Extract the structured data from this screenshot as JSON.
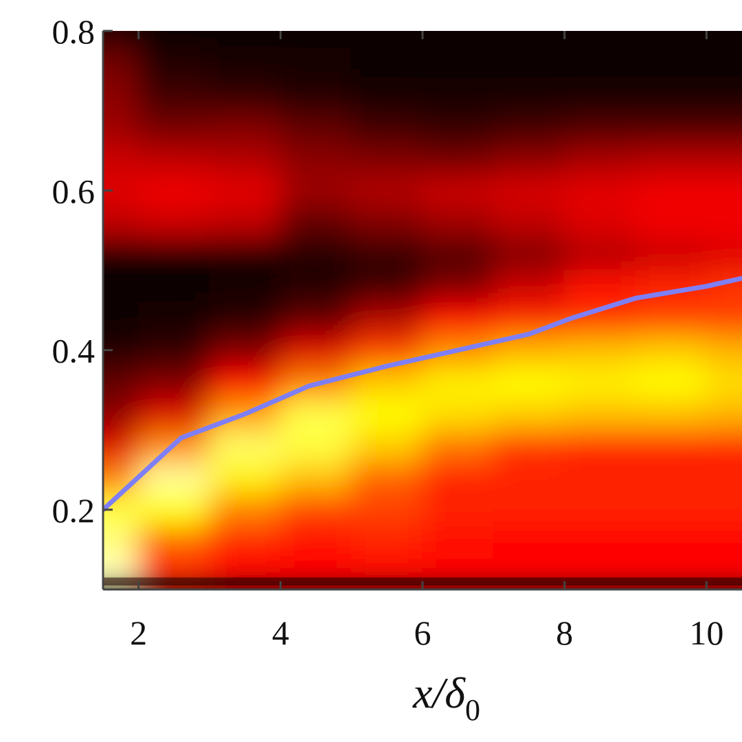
{
  "chart_data": {
    "type": "heatmap",
    "title": "",
    "xlabel": "x/δ0",
    "xlabel_main": "x/δ",
    "xlabel_sub": "0",
    "ylabel": "",
    "xlim": [
      1.5,
      10.5
    ],
    "ylim": [
      0.1,
      0.8
    ],
    "xticks": [
      2,
      4,
      6,
      8,
      10
    ],
    "yticks": [
      0.2,
      0.4,
      0.6,
      0.8
    ],
    "xtick_labels": [
      "2",
      "4",
      "6",
      "8",
      "10"
    ],
    "ytick_labels": [
      "0.2",
      "0.4",
      "0.6",
      "0.8"
    ],
    "colormap": "hot",
    "grid": false,
    "intensity_field": {
      "x": [
        1.5,
        2.5,
        3.5,
        4.5,
        5.5,
        6.5,
        7.5,
        8.5,
        9.5,
        10.5
      ],
      "y": [
        0.12,
        0.16,
        0.2,
        0.24,
        0.28,
        0.32,
        0.36,
        0.4,
        0.44,
        0.48,
        0.52,
        0.56,
        0.6,
        0.64,
        0.68,
        0.72,
        0.76,
        0.8
      ],
      "values": [
        [
          0.95,
          0.45,
          0.4,
          0.4,
          0.4,
          0.4,
          0.4,
          0.4,
          0.4,
          0.4
        ],
        [
          0.9,
          0.55,
          0.45,
          0.42,
          0.45,
          0.42,
          0.4,
          0.4,
          0.4,
          0.4
        ],
        [
          0.85,
          0.8,
          0.6,
          0.5,
          0.5,
          0.45,
          0.45,
          0.45,
          0.45,
          0.45
        ],
        [
          0.6,
          0.92,
          0.78,
          0.7,
          0.55,
          0.45,
          0.45,
          0.45,
          0.45,
          0.45
        ],
        [
          0.35,
          0.62,
          0.88,
          0.85,
          0.72,
          0.58,
          0.48,
          0.45,
          0.45,
          0.45
        ],
        [
          0.22,
          0.35,
          0.65,
          0.86,
          0.8,
          0.75,
          0.72,
          0.7,
          0.7,
          0.68
        ],
        [
          0.15,
          0.2,
          0.4,
          0.6,
          0.72,
          0.78,
          0.8,
          0.78,
          0.8,
          0.75
        ],
        [
          0.05,
          0.08,
          0.2,
          0.35,
          0.5,
          0.62,
          0.68,
          0.7,
          0.72,
          0.68
        ],
        [
          0.02,
          0.03,
          0.06,
          0.15,
          0.28,
          0.4,
          0.45,
          0.48,
          0.5,
          0.5
        ],
        [
          0.02,
          0.02,
          0.03,
          0.05,
          0.1,
          0.2,
          0.32,
          0.42,
          0.45,
          0.48
        ],
        [
          0.02,
          0.02,
          0.03,
          0.05,
          0.08,
          0.12,
          0.2,
          0.28,
          0.32,
          0.35
        ],
        [
          0.3,
          0.32,
          0.3,
          0.15,
          0.2,
          0.25,
          0.3,
          0.35,
          0.38,
          0.38
        ],
        [
          0.35,
          0.38,
          0.36,
          0.25,
          0.28,
          0.32,
          0.34,
          0.36,
          0.38,
          0.38
        ],
        [
          0.32,
          0.3,
          0.28,
          0.22,
          0.2,
          0.18,
          0.22,
          0.26,
          0.28,
          0.28
        ],
        [
          0.25,
          0.18,
          0.2,
          0.15,
          0.1,
          0.08,
          0.1,
          0.12,
          0.12,
          0.12
        ],
        [
          0.22,
          0.1,
          0.08,
          0.05,
          0.04,
          0.03,
          0.03,
          0.03,
          0.03,
          0.03
        ],
        [
          0.18,
          0.05,
          0.04,
          0.03,
          0.02,
          0.02,
          0.02,
          0.02,
          0.02,
          0.02
        ],
        [
          0.06,
          0.02,
          0.02,
          0.02,
          0.02,
          0.02,
          0.02,
          0.02,
          0.02,
          0.02
        ]
      ]
    },
    "series": [
      {
        "type": "line",
        "color": "#7f7ff5",
        "x": [
          1.5,
          2.6,
          3.5,
          4.4,
          5.5,
          6.5,
          7.5,
          8.1,
          9.0,
          10.0,
          10.5
        ],
        "y": [
          0.2,
          0.29,
          0.32,
          0.355,
          0.38,
          0.4,
          0.42,
          0.44,
          0.465,
          0.48,
          0.49
        ]
      }
    ]
  }
}
